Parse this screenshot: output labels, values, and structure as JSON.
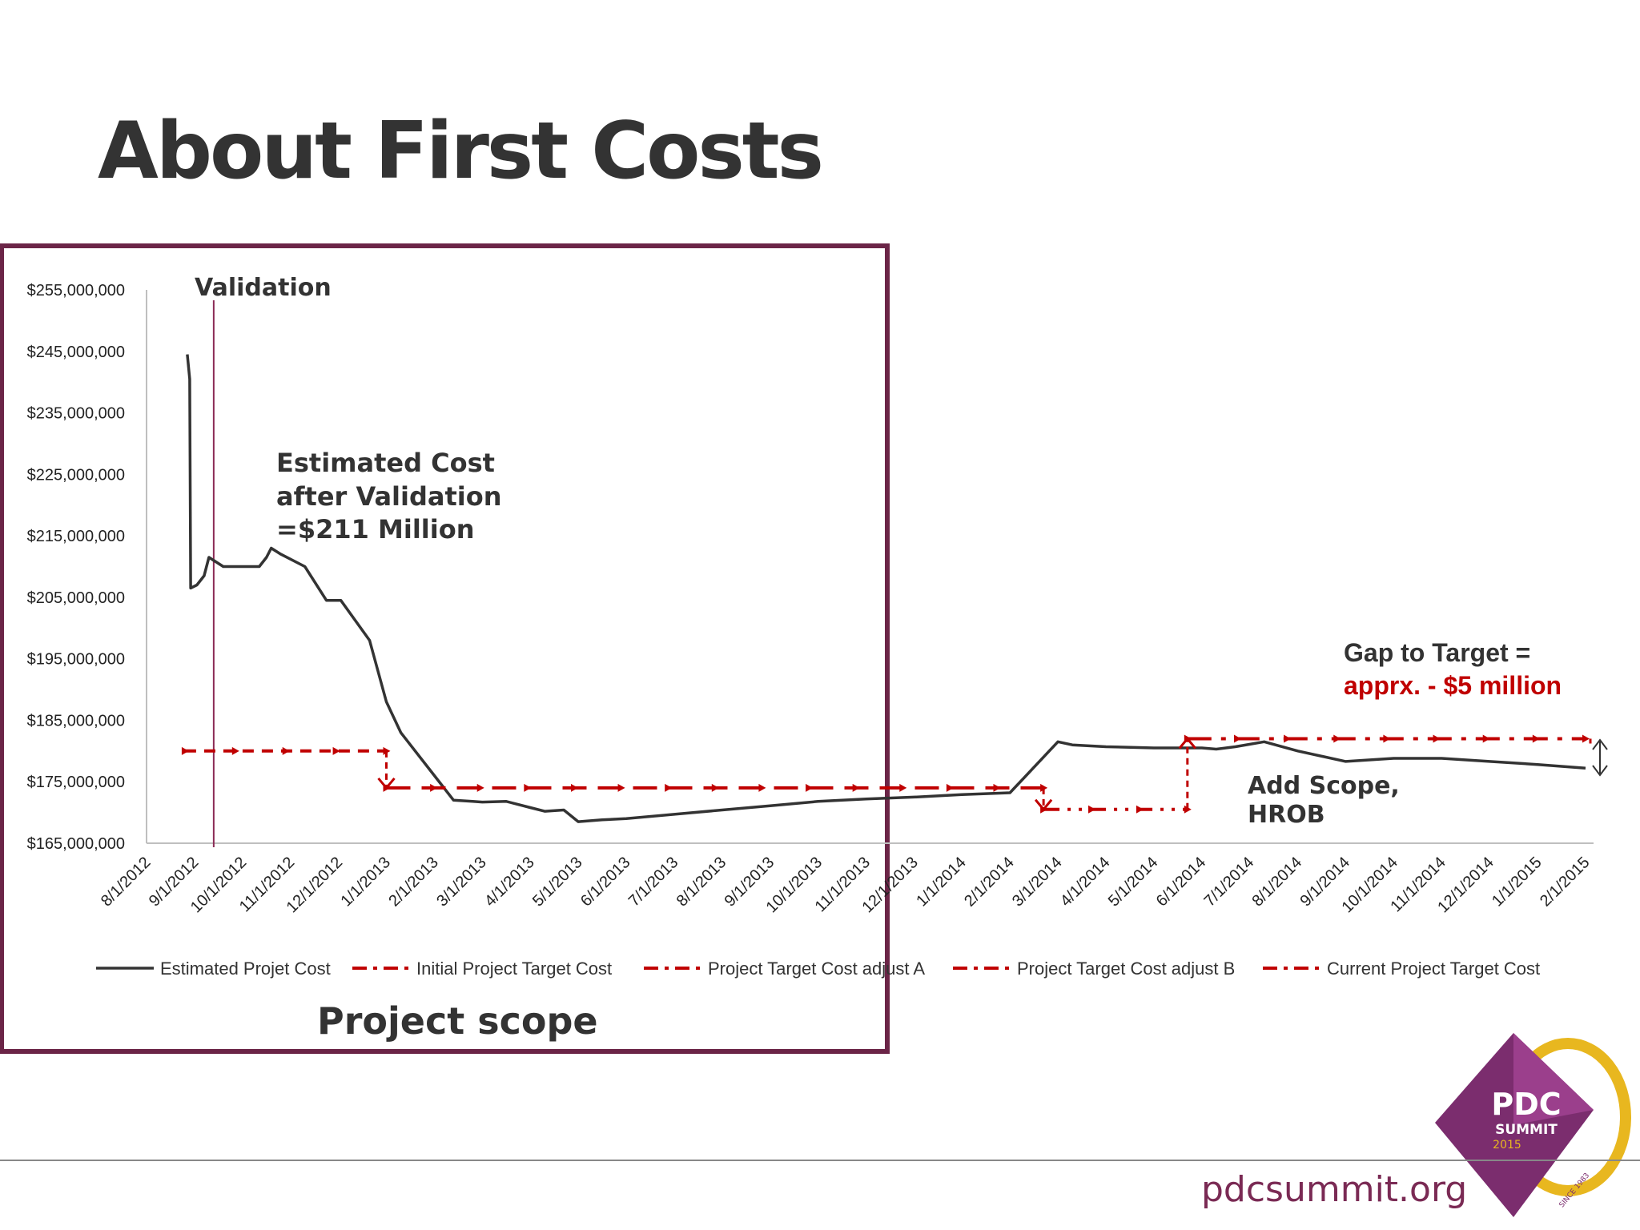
{
  "slide": {
    "title": "About First Costs",
    "footer_url": "pdcsummit.org"
  },
  "logo": {
    "line1": "PDC",
    "line2": "SUMMIT",
    "line3": "2015",
    "since": "SINCE 1983"
  },
  "colors": {
    "estimate": "#333333",
    "target": "#c00000",
    "box": "#6b2547",
    "gap_red": "#c00000",
    "logo_purple": "#7b2d6e",
    "logo_gold": "#e8b71f"
  },
  "annotations": {
    "validation": "Validation",
    "estimated_lines": [
      "Estimated Cost",
      "after Validation",
      "=$211 Million"
    ],
    "gap_line1": "Gap to Target =",
    "gap_line2": "apprx. - $5 million",
    "add_scope_lines": [
      "Add Scope,",
      "HROB"
    ],
    "project_scope": "Project scope"
  },
  "chart_data": {
    "type": "line",
    "title": "",
    "xlabel": "",
    "ylabel": "",
    "ylim": [
      165000000,
      255000000
    ],
    "y_ticks": [
      "$255,000,000",
      "$245,000,000",
      "$235,000,000",
      "$225,000,000",
      "$215,000,000",
      "$205,000,000",
      "$195,000,000",
      "$185,000,000",
      "$175,000,000",
      "$165,000,000"
    ],
    "y_tick_values": [
      255000000,
      245000000,
      235000000,
      225000000,
      215000000,
      205000000,
      195000000,
      185000000,
      175000000,
      165000000
    ],
    "categories": [
      "8/1/2012",
      "9/1/2012",
      "10/1/2012",
      "11/1/2012",
      "12/1/2012",
      "1/1/2013",
      "2/1/2013",
      "3/1/2013",
      "4/1/2013",
      "5/1/2013",
      "6/1/2013",
      "7/1/2013",
      "8/1/2013",
      "9/1/2013",
      "10/1/2013",
      "11/1/2013",
      "12/1/2013",
      "1/1/2014",
      "2/1/2014",
      "3/1/2014",
      "4/1/2014",
      "5/1/2014",
      "6/1/2014",
      "7/1/2014",
      "8/1/2014",
      "9/1/2014",
      "10/1/2014",
      "11/1/2014",
      "12/1/2014",
      "1/1/2015",
      "2/1/2015"
    ],
    "validation_marker_month": 1.4,
    "series": [
      {
        "name": "Estimated Projet Cost",
        "style": "solid",
        "x": [
          0.85,
          0.9,
          0.92,
          1.05,
          1.2,
          1.3,
          1.6,
          2.0,
          2.35,
          2.5,
          2.6,
          2.8,
          3.3,
          3.75,
          4.05,
          4.65,
          5.0,
          5.3,
          6.0,
          6.4,
          6.8,
          7.0,
          7.5,
          8.0,
          8.3,
          8.7,
          9.0,
          9.5,
          10.0,
          11.0,
          12.0,
          13.0,
          14.0,
          15.0,
          16.0,
          17.0,
          18.0,
          19.0,
          19.3,
          20.0,
          21.0,
          22.0,
          22.3,
          22.7,
          23.3,
          24.0,
          25.0,
          26.0,
          27.0,
          28.0,
          29.0,
          30.0
        ],
        "values": [
          244500000,
          240500000,
          206500000,
          207000000,
          208500000,
          211500000,
          210000000,
          210000000,
          210000000,
          211500000,
          213000000,
          212000000,
          210000000,
          204500000,
          204500000,
          198000000,
          188000000,
          183000000,
          176000000,
          172000000,
          171800000,
          171700000,
          171800000,
          170800000,
          170200000,
          170400000,
          168500000,
          168800000,
          169000000,
          169700000,
          170400000,
          171100000,
          171800000,
          172200000,
          172500000,
          172900000,
          173200000,
          181500000,
          181000000,
          180700000,
          180500000,
          180500000,
          180300000,
          180700000,
          181500000,
          180000000,
          178300000,
          178800000,
          178800000,
          178300000,
          177800000,
          177200000
        ]
      },
      {
        "name": "Initial Project Target Cost",
        "style": "dash-arrow",
        "x": [
          0.8,
          5.0
        ],
        "values": [
          180000000,
          180000000
        ]
      },
      {
        "name": "Project Target Cost adjust A",
        "style": "long-dash",
        "x": [
          5.0,
          18.7
        ],
        "values": [
          174000000,
          174000000
        ]
      },
      {
        "name": "Project Target Cost adjust B",
        "style": "dash-dot-dot",
        "x": [
          18.7,
          21.7
        ],
        "values": [
          170500000,
          170500000
        ]
      },
      {
        "name": "Current Project Target Cost",
        "style": "dash-dot",
        "x": [
          21.7,
          30.0
        ],
        "values": [
          182000000,
          182000000
        ]
      }
    ],
    "legend_position": "bottom"
  }
}
